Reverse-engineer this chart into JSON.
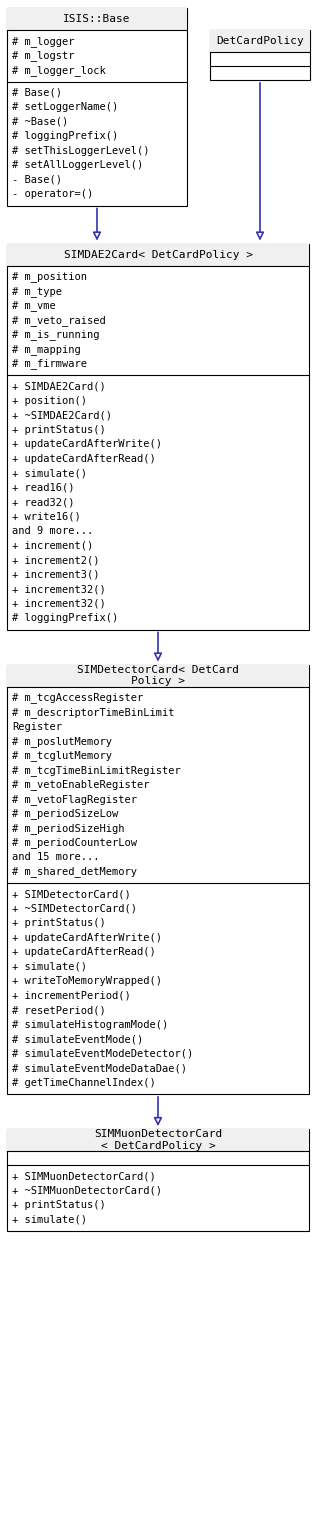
{
  "bg_color": "#ffffff",
  "text_color": "#000000",
  "arrow_color": "#3333aa",
  "border_color": "#000000",
  "isis_title": "ISIS::Base",
  "isis_sec1": [
    "# m_logger",
    "# m_logstr",
    "# m_logger_lock"
  ],
  "isis_sec2": [
    "# Base()",
    "# setLoggerName()",
    "# ~Base()",
    "# loggingPrefix()",
    "# setThisLoggerLevel()",
    "# setAllLoggerLevel()",
    "- Base()",
    "- operator=()"
  ],
  "dcp_title": "DetCardPolicy",
  "sim2_title": "SIMDAE2Card< DetCardPolicy >",
  "sim2_sec1": [
    "# m_position",
    "# m_type",
    "# m_vme",
    "# m_veto_raised",
    "# m_is_running",
    "# m_mapping",
    "# m_firmware"
  ],
  "sim2_sec2": [
    "+ SIMDAE2Card()",
    "+ position()",
    "+ ~SIMDAE2Card()",
    "+ printStatus()",
    "+ updateCardAfterWrite()",
    "+ updateCardAfterRead()",
    "+ simulate()",
    "+ read16()",
    "+ read32()",
    "+ write16()",
    "and 9 more...",
    "+ increment()",
    "+ increment2()",
    "+ increment3()",
    "+ increment32()",
    "+ increment32()",
    "# loggingPrefix()"
  ],
  "simd_title": "SIMDetectorCard< DetCard\nPolicy >",
  "simd_sec1": [
    "# m_tcgAccessRegister",
    "# m_descriptorTimeBinLimit\nRegister",
    "# m_poslutMemory",
    "# m_tcglutMemory",
    "# m_tcgTimeBinLimitRegister",
    "# m_vetoEnableRegister",
    "# m_vetoFlagRegister",
    "# m_periodSizeLow",
    "# m_periodSizeHigh",
    "# m_periodCounterLow",
    "and 15 more...",
    "# m_shared_detMemory"
  ],
  "simd_sec2": [
    "+ SIMDetectorCard()",
    "+ ~SIMDetectorCard()",
    "+ printStatus()",
    "+ updateCardAfterWrite()",
    "+ updateCardAfterRead()",
    "+ simulate()",
    "+ writeToMemoryWrapped()",
    "+ incrementPeriod()",
    "# resetPeriod()",
    "# simulateHistogramMode()",
    "# simulateEventMode()",
    "# simulateEventModeDetector()",
    "# simulateEventModeDataDae()",
    "# getTimeChannelIndex()"
  ],
  "simm_title": "SIMMuonDetectorCard\n< DetCardPolicy >",
  "simm_sec2": [
    "+ SIMMuonDetectorCard()",
    "+ ~SIMMuonDetectorCard()",
    "+ printStatus()",
    "+ simulate()"
  ]
}
